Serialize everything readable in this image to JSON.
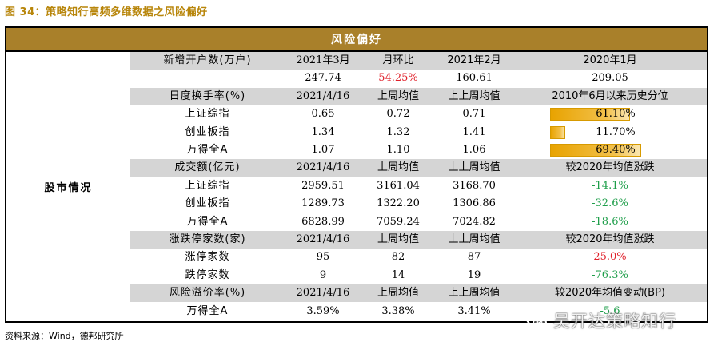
{
  "figure_title": "图 34：策略知行高频多维数据之风险偏好",
  "table": {
    "title": "风险偏好",
    "side_label": "股市情况",
    "rows": [
      {
        "type": "head",
        "cells": [
          "新增开户数(万户)",
          "2021年3月",
          "月环比",
          "2021年2月",
          "2020年1月"
        ]
      },
      {
        "type": "data",
        "cells": [
          "",
          "247.74",
          "54.25%",
          "160.61",
          "209.05"
        ],
        "styles": [
          "",
          "",
          "red",
          "",
          ""
        ]
      },
      {
        "type": "head",
        "cells": [
          "日度换手率(%)",
          "2021/4/16",
          "上周均值",
          "上上周均值",
          "2010年6月以来历史分位"
        ]
      },
      {
        "type": "bar",
        "cells": [
          "上证综指",
          "0.65",
          "0.72",
          "0.71",
          "61.10%"
        ],
        "bar": 0.611
      },
      {
        "type": "bar",
        "cells": [
          "创业板指",
          "1.34",
          "1.32",
          "1.41",
          "11.70%"
        ],
        "bar": 0.117
      },
      {
        "type": "bar",
        "cells": [
          "万得全A",
          "1.07",
          "1.10",
          "1.06",
          "69.40%"
        ],
        "bar": 0.694
      },
      {
        "type": "head",
        "cells": [
          "成交额(亿元)",
          "2021/4/16",
          "上周均值",
          "上上周均值",
          "较2020年均值涨跌"
        ]
      },
      {
        "type": "data",
        "cells": [
          "上证综指",
          "2959.51",
          "3161.04",
          "3168.70",
          "-14.1%"
        ],
        "styles": [
          "",
          "",
          "",
          "",
          "green"
        ]
      },
      {
        "type": "data",
        "cells": [
          "创业板指",
          "1289.73",
          "1322.20",
          "1306.86",
          "-32.6%"
        ],
        "styles": [
          "",
          "",
          "",
          "",
          "green"
        ]
      },
      {
        "type": "data",
        "cells": [
          "万得全A",
          "6828.99",
          "7059.24",
          "7024.82",
          "-18.6%"
        ],
        "styles": [
          "",
          "",
          "",
          "",
          "green"
        ]
      },
      {
        "type": "head",
        "cells": [
          "涨跌停家数(家)",
          "2021/4/16",
          "上周均值",
          "上上周均值",
          "较2020年均值涨跌"
        ]
      },
      {
        "type": "data",
        "cells": [
          "涨停家数",
          "95",
          "82",
          "87",
          "25.0%"
        ],
        "styles": [
          "",
          "",
          "",
          "",
          "red"
        ]
      },
      {
        "type": "data",
        "cells": [
          "跌停家数",
          "9",
          "14",
          "19",
          "-76.3%"
        ],
        "styles": [
          "",
          "",
          "",
          "",
          "green"
        ]
      },
      {
        "type": "head",
        "cells": [
          "风险溢价率(%)",
          "2021/4/16",
          "上周均值",
          "上上周均值",
          "较2020年均值变动(BP)"
        ]
      },
      {
        "type": "data",
        "cells": [
          "万得全A",
          "3.59%",
          "3.38%",
          "3.41%",
          "-5.6"
        ],
        "styles": [
          "",
          "",
          "",
          "",
          "green"
        ]
      }
    ]
  },
  "source": "资料来源：Wind，德邦研究所",
  "watermark": "吴开达策略知行",
  "colors": {
    "header_bg": "#a9802a",
    "subheader_bg": "#d5d5d5",
    "up": "#e0202a",
    "down": "#1e9e4a",
    "bar": "#e8a300"
  }
}
